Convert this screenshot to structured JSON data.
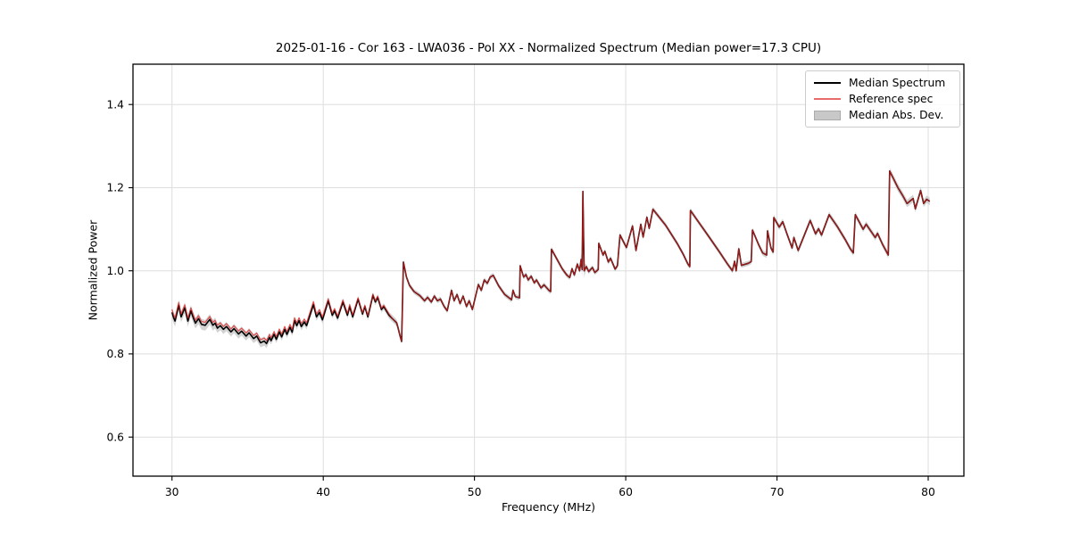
{
  "window": {
    "background": "#ffffff"
  },
  "chart_data": {
    "type": "line",
    "title": "2025-01-16 - Cor 163 - LWA036 - Pol XX - Normalized Spectrum (Median power=17.3 CPU)",
    "xlabel": "Frequency (MHz)",
    "ylabel": "Normalized Power",
    "xlim": [
      27.42,
      82.36
    ],
    "ylim": [
      0.506,
      1.497
    ],
    "xticks": [
      "30",
      "40",
      "50",
      "60",
      "70",
      "80"
    ],
    "yticks": [
      "0.6",
      "0.8",
      "1.0",
      "1.2",
      "1.4"
    ],
    "grid": true,
    "grid_color": "#dedede",
    "spine_color": "#000000",
    "text_color": "#000000",
    "legend": {
      "position": "upper right",
      "entries": [
        {
          "label": "Median Spectrum",
          "type": "line",
          "color": "#000000"
        },
        {
          "label": "Reference spec",
          "type": "line",
          "color": "#e96a6a"
        },
        {
          "label": "Median Abs. Dev.",
          "type": "patch",
          "color": "#c8c8c8"
        }
      ]
    },
    "series": [
      {
        "name": "Median Spectrum",
        "color": "#000000",
        "line_width": 1.6,
        "points": [
          [
            30.0,
            0.9
          ],
          [
            30.1,
            0.888
          ],
          [
            30.2,
            0.879
          ],
          [
            30.45,
            0.917
          ],
          [
            30.6,
            0.889
          ],
          [
            30.85,
            0.911
          ],
          [
            31.05,
            0.879
          ],
          [
            31.25,
            0.904
          ],
          [
            31.4,
            0.888
          ],
          [
            31.55,
            0.874
          ],
          [
            31.75,
            0.885
          ],
          [
            31.95,
            0.871
          ],
          [
            32.2,
            0.869
          ],
          [
            32.35,
            0.876
          ],
          [
            32.5,
            0.883
          ],
          [
            32.7,
            0.869
          ],
          [
            32.85,
            0.874
          ],
          [
            33.0,
            0.862
          ],
          [
            33.2,
            0.868
          ],
          [
            33.4,
            0.859
          ],
          [
            33.6,
            0.866
          ],
          [
            33.9,
            0.853
          ],
          [
            34.1,
            0.861
          ],
          [
            34.4,
            0.848
          ],
          [
            34.6,
            0.855
          ],
          [
            34.9,
            0.843
          ],
          [
            35.1,
            0.851
          ],
          [
            35.4,
            0.837
          ],
          [
            35.6,
            0.843
          ],
          [
            35.85,
            0.827
          ],
          [
            36.1,
            0.831
          ],
          [
            36.25,
            0.825
          ],
          [
            36.45,
            0.84
          ],
          [
            36.55,
            0.832
          ],
          [
            36.75,
            0.847
          ],
          [
            36.9,
            0.835
          ],
          [
            37.1,
            0.853
          ],
          [
            37.25,
            0.841
          ],
          [
            37.45,
            0.859
          ],
          [
            37.6,
            0.847
          ],
          [
            37.8,
            0.864
          ],
          [
            37.95,
            0.852
          ],
          [
            38.1,
            0.88
          ],
          [
            38.25,
            0.868
          ],
          [
            38.4,
            0.88
          ],
          [
            38.55,
            0.866
          ],
          [
            38.75,
            0.877
          ],
          [
            38.9,
            0.868
          ],
          [
            39.35,
            0.919
          ],
          [
            39.55,
            0.889
          ],
          [
            39.75,
            0.9
          ],
          [
            39.95,
            0.882
          ],
          [
            40.33,
            0.928
          ],
          [
            40.6,
            0.893
          ],
          [
            40.75,
            0.904
          ],
          [
            40.95,
            0.886
          ],
          [
            41.3,
            0.925
          ],
          [
            41.6,
            0.893
          ],
          [
            41.75,
            0.914
          ],
          [
            41.95,
            0.889
          ],
          [
            42.3,
            0.932
          ],
          [
            42.6,
            0.896
          ],
          [
            42.75,
            0.914
          ],
          [
            42.95,
            0.889
          ],
          [
            43.28,
            0.941
          ],
          [
            43.45,
            0.925
          ],
          [
            43.6,
            0.936
          ],
          [
            43.85,
            0.907
          ],
          [
            44.0,
            0.914
          ],
          [
            44.35,
            0.893
          ],
          [
            44.6,
            0.884
          ],
          [
            44.85,
            0.875
          ],
          [
            44.95,
            0.862
          ],
          [
            45.08,
            0.843
          ],
          [
            45.18,
            0.83
          ],
          [
            45.3,
            1.021
          ],
          [
            45.5,
            0.985
          ],
          [
            45.7,
            0.965
          ],
          [
            46.0,
            0.95
          ],
          [
            46.4,
            0.94
          ],
          [
            46.7,
            0.928
          ],
          [
            46.9,
            0.936
          ],
          [
            47.15,
            0.925
          ],
          [
            47.35,
            0.939
          ],
          [
            47.55,
            0.928
          ],
          [
            47.75,
            0.932
          ],
          [
            48.0,
            0.914
          ],
          [
            48.2,
            0.904
          ],
          [
            48.48,
            0.953
          ],
          [
            48.65,
            0.928
          ],
          [
            48.85,
            0.943
          ],
          [
            49.05,
            0.921
          ],
          [
            49.25,
            0.939
          ],
          [
            49.47,
            0.914
          ],
          [
            49.65,
            0.928
          ],
          [
            49.86,
            0.907
          ],
          [
            50.26,
            0.967
          ],
          [
            50.45,
            0.953
          ],
          [
            50.65,
            0.978
          ],
          [
            50.85,
            0.97
          ],
          [
            51.04,
            0.985
          ],
          [
            51.24,
            0.989
          ],
          [
            51.6,
            0.964
          ],
          [
            52.0,
            0.943
          ],
          [
            52.45,
            0.93
          ],
          [
            52.55,
            0.953
          ],
          [
            52.7,
            0.938
          ],
          [
            52.98,
            0.935
          ],
          [
            53.02,
            1.012
          ],
          [
            53.25,
            0.985
          ],
          [
            53.4,
            0.991
          ],
          [
            53.55,
            0.978
          ],
          [
            53.75,
            0.987
          ],
          [
            53.95,
            0.971
          ],
          [
            54.1,
            0.978
          ],
          [
            54.4,
            0.959
          ],
          [
            54.6,
            0.966
          ],
          [
            54.95,
            0.952
          ],
          [
            55.04,
            0.95
          ],
          [
            55.09,
            1.052
          ],
          [
            55.45,
            1.028
          ],
          [
            55.8,
            1.005
          ],
          [
            56.1,
            0.99
          ],
          [
            56.3,
            0.984
          ],
          [
            56.45,
            1.005
          ],
          [
            56.6,
            0.99
          ],
          [
            56.8,
            1.016
          ],
          [
            56.95,
            1.0
          ],
          [
            57.05,
            1.027
          ],
          [
            57.12,
            1.003
          ],
          [
            57.17,
            1.191
          ],
          [
            57.25,
            1.0
          ],
          [
            57.4,
            1.01
          ],
          [
            57.55,
            0.998
          ],
          [
            57.8,
            1.008
          ],
          [
            57.95,
            0.996
          ],
          [
            58.18,
            1.003
          ],
          [
            58.22,
            1.066
          ],
          [
            58.5,
            1.038
          ],
          [
            58.62,
            1.047
          ],
          [
            58.85,
            1.021
          ],
          [
            59.0,
            1.03
          ],
          [
            59.3,
            1.004
          ],
          [
            59.45,
            1.012
          ],
          [
            59.62,
            1.086
          ],
          [
            60.05,
            1.056
          ],
          [
            60.45,
            1.108
          ],
          [
            60.68,
            1.049
          ],
          [
            61.0,
            1.112
          ],
          [
            61.15,
            1.081
          ],
          [
            61.4,
            1.129
          ],
          [
            61.55,
            1.102
          ],
          [
            61.8,
            1.148
          ],
          [
            62.65,
            1.109
          ],
          [
            63.4,
            1.066
          ],
          [
            63.8,
            1.04
          ],
          [
            64.1,
            1.017
          ],
          [
            64.24,
            1.01
          ],
          [
            64.28,
            1.145
          ],
          [
            65.0,
            1.108
          ],
          [
            65.5,
            1.082
          ],
          [
            66.2,
            1.045
          ],
          [
            66.7,
            1.018
          ],
          [
            67.05,
            1.0
          ],
          [
            67.2,
            1.023
          ],
          [
            67.3,
            1.0
          ],
          [
            67.48,
            1.053
          ],
          [
            67.65,
            1.013
          ],
          [
            68.1,
            1.018
          ],
          [
            68.3,
            1.022
          ],
          [
            68.38,
            1.098
          ],
          [
            68.8,
            1.062
          ],
          [
            69.05,
            1.043
          ],
          [
            69.32,
            1.038
          ],
          [
            69.38,
            1.096
          ],
          [
            69.6,
            1.055
          ],
          [
            69.75,
            1.045
          ],
          [
            69.79,
            1.128
          ],
          [
            70.15,
            1.105
          ],
          [
            70.38,
            1.118
          ],
          [
            70.7,
            1.085
          ],
          [
            71.0,
            1.055
          ],
          [
            71.12,
            1.08
          ],
          [
            71.4,
            1.049
          ],
          [
            72.2,
            1.121
          ],
          [
            72.55,
            1.089
          ],
          [
            72.75,
            1.101
          ],
          [
            72.95,
            1.086
          ],
          [
            73.45,
            1.135
          ],
          [
            74.0,
            1.106
          ],
          [
            74.5,
            1.076
          ],
          [
            74.85,
            1.053
          ],
          [
            75.05,
            1.043
          ],
          [
            75.18,
            1.135
          ],
          [
            75.7,
            1.1
          ],
          [
            75.9,
            1.112
          ],
          [
            76.5,
            1.08
          ],
          [
            76.65,
            1.09
          ],
          [
            77.0,
            1.062
          ],
          [
            77.36,
            1.038
          ],
          [
            77.45,
            1.24
          ],
          [
            77.7,
            1.222
          ],
          [
            78.0,
            1.2
          ],
          [
            78.3,
            1.182
          ],
          [
            78.6,
            1.162
          ],
          [
            79.0,
            1.174
          ],
          [
            79.15,
            1.149
          ],
          [
            79.5,
            1.193
          ],
          [
            79.7,
            1.162
          ],
          [
            79.9,
            1.172
          ],
          [
            80.1,
            1.167
          ]
        ]
      }
    ],
    "reference_spec": {
      "name": "Reference spec",
      "color": "#dd2222",
      "opacity": 0.75,
      "line_width": 1.2,
      "offset_segments": [
        [
          29.9,
          40.0,
          0.007
        ],
        [
          40.0,
          42.0,
          0.005
        ],
        [
          42.0,
          44.5,
          0.003
        ],
        [
          44.5,
          80.3,
          0.0
        ]
      ]
    },
    "median_abs_dev": {
      "name": "Median Abs. Dev.",
      "color": "#c8c8c8",
      "opacity": 0.8,
      "halfwidth_segments": [
        [
          29.9,
          33.0,
          0.013
        ],
        [
          33.0,
          36.5,
          0.011
        ],
        [
          36.5,
          40.0,
          0.009
        ],
        [
          40.0,
          45.0,
          0.008
        ],
        [
          45.0,
          57.0,
          0.006
        ],
        [
          57.0,
          57.3,
          0.016
        ],
        [
          57.3,
          69.0,
          0.006
        ],
        [
          69.0,
          77.2,
          0.007
        ],
        [
          77.2,
          77.7,
          0.008
        ],
        [
          77.7,
          80.3,
          0.009
        ]
      ]
    }
  }
}
